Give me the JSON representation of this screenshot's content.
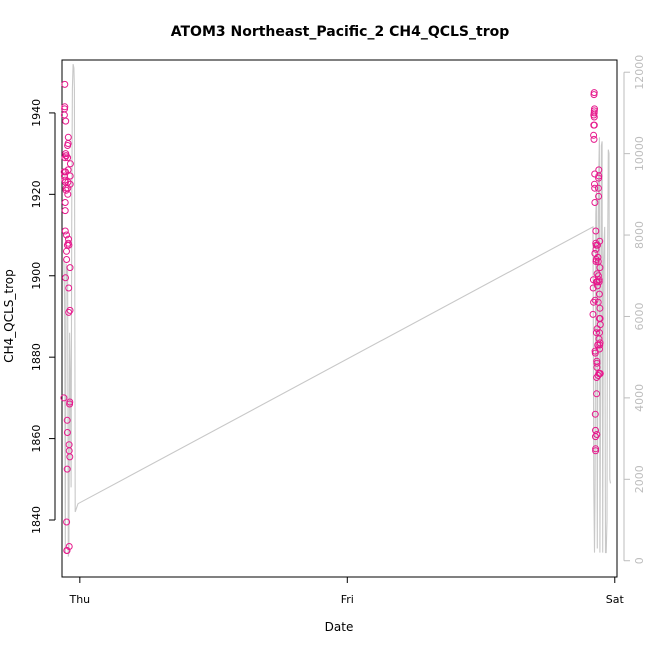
{
  "chart_data": {
    "type": "scatter",
    "title": "ATOM3 Northeast_Pacific_2 CH4_QCLS_trop",
    "xlabel": "Date",
    "ylabel": "CH4_QCLS_trop",
    "x_axis": {
      "type": "date",
      "range": [
        "2017-10-04T22:24",
        "2017-10-07T00:12"
      ],
      "ticks": [
        {
          "label": "Thu",
          "value": "2017-10-05T00:00"
        },
        {
          "label": "Fri",
          "value": "2017-10-06T00:00"
        },
        {
          "label": "Sat",
          "value": "2017-10-07T00:00"
        }
      ]
    },
    "y_left": {
      "range": [
        1826,
        1953
      ],
      "ticks": [
        1840,
        1860,
        1880,
        1900,
        1920,
        1940
      ],
      "color": "#000000"
    },
    "y_right": {
      "range": [
        -400,
        12300
      ],
      "ticks": [
        0,
        2000,
        4000,
        6000,
        8000,
        10000,
        12000
      ],
      "color": "#bdbdbd",
      "label": ""
    },
    "series": [
      {
        "type": "line",
        "axis": "right",
        "color": "#c8c8c8",
        "points": [
          [
            "2017-10-04T22:34",
            7400
          ],
          [
            "2017-10-04T22:38",
            6400
          ],
          [
            "2017-10-04T22:42",
            200
          ],
          [
            "2017-10-04T22:46",
            7300
          ],
          [
            "2017-10-04T22:50",
            6900
          ],
          [
            "2017-10-04T22:54",
            7200
          ],
          [
            "2017-10-04T22:58",
            100
          ],
          [
            "2017-10-04T23:01",
            200
          ],
          [
            "2017-10-04T23:05",
            5600
          ],
          [
            "2017-10-04T23:09",
            4500
          ],
          [
            "2017-10-04T23:13",
            1800
          ],
          [
            "2017-10-04T23:17",
            9000
          ],
          [
            "2017-10-04T23:20",
            11600
          ],
          [
            "2017-10-04T23:24",
            12200
          ],
          [
            "2017-10-04T23:28",
            12100
          ],
          [
            "2017-10-04T23:31",
            11600
          ],
          [
            "2017-10-04T23:35",
            1200
          ],
          [
            "2017-10-04T23:50",
            1400
          ],
          [
            "2017-10-06T22:03",
            8200
          ],
          [
            "2017-10-06T22:07",
            1800
          ],
          [
            "2017-10-06T22:11",
            200
          ],
          [
            "2017-10-06T22:14",
            1900
          ],
          [
            "2017-10-06T22:18",
            8500
          ],
          [
            "2017-10-06T22:22",
            9200
          ],
          [
            "2017-10-06T22:26",
            300
          ],
          [
            "2017-10-06T22:29",
            6000
          ],
          [
            "2017-10-06T22:33",
            9300
          ],
          [
            "2017-10-06T22:37",
            10400
          ],
          [
            "2017-10-06T22:40",
            200
          ],
          [
            "2017-10-06T22:44",
            4300
          ],
          [
            "2017-10-06T22:48",
            10200
          ],
          [
            "2017-10-06T22:52",
            10300
          ],
          [
            "2017-10-06T22:55",
            200
          ],
          [
            "2017-10-06T22:59",
            7200
          ],
          [
            "2017-10-06T23:03",
            7900
          ],
          [
            "2017-10-06T23:06",
            8200
          ],
          [
            "2017-10-06T23:10",
            200
          ],
          [
            "2017-10-06T23:14",
            200
          ],
          [
            "2017-10-06T23:18",
            1000
          ],
          [
            "2017-10-06T23:21",
            7000
          ],
          [
            "2017-10-06T23:25",
            10100
          ],
          [
            "2017-10-06T23:29",
            10000
          ],
          [
            "2017-10-06T23:33",
            2000
          ],
          [
            "2017-10-06T23:37",
            1900
          ]
        ]
      },
      {
        "type": "scatter",
        "axis": "left",
        "color": "#e6198c",
        "marker": "open-circle",
        "points": [
          [
            "2017-10-04T22:34",
            1870
          ],
          [
            "2017-10-04T22:36",
            1925.5
          ],
          [
            "2017-10-04T22:37",
            1924.5
          ],
          [
            "2017-10-04T22:37",
            1939.5
          ],
          [
            "2017-10-04T22:38",
            1941
          ],
          [
            "2017-10-04T22:39",
            1941.5
          ],
          [
            "2017-10-04T22:39",
            1947
          ],
          [
            "2017-10-04T22:40",
            1929
          ],
          [
            "2017-10-04T22:40",
            1923.5
          ],
          [
            "2017-10-04T22:41",
            1918
          ],
          [
            "2017-10-04T22:41",
            1916
          ],
          [
            "2017-10-04T22:42",
            1911
          ],
          [
            "2017-10-04T22:43",
            1899.5
          ],
          [
            "2017-10-04T22:43",
            1923
          ],
          [
            "2017-10-04T22:43",
            1925.5
          ],
          [
            "2017-10-04T22:44",
            1930
          ],
          [
            "2017-10-04T22:44",
            1938
          ],
          [
            "2017-10-04T22:45",
            1929.5
          ],
          [
            "2017-10-04T22:46",
            1921.5
          ],
          [
            "2017-10-04T22:46",
            1921
          ],
          [
            "2017-10-04T22:47",
            1929.5
          ],
          [
            "2017-10-04T22:48",
            1910
          ],
          [
            "2017-10-04T22:48",
            1906
          ],
          [
            "2017-10-04T22:49",
            1904
          ],
          [
            "2017-10-04T22:49",
            1839.5
          ],
          [
            "2017-10-04T22:50",
            1832.5
          ],
          [
            "2017-10-04T22:51",
            1832.5
          ],
          [
            "2017-10-04T22:52",
            1852.5
          ],
          [
            "2017-10-04T22:52",
            1864.5
          ],
          [
            "2017-10-04T22:53",
            1861.5
          ],
          [
            "2017-10-04T22:53",
            1907.5
          ],
          [
            "2017-10-04T22:54",
            1929
          ],
          [
            "2017-10-04T22:54",
            1932
          ],
          [
            "2017-10-04T22:55",
            1920
          ],
          [
            "2017-10-04T22:55",
            1921.5
          ],
          [
            "2017-10-04T22:56",
            1923
          ],
          [
            "2017-10-04T22:57",
            1926
          ],
          [
            "2017-10-04T22:57",
            1932.5
          ],
          [
            "2017-10-04T22:58",
            1934
          ],
          [
            "2017-10-04T22:58",
            1908
          ],
          [
            "2017-10-04T22:59",
            1909
          ],
          [
            "2017-10-04T23:00",
            1897
          ],
          [
            "2017-10-04T23:00",
            1891
          ],
          [
            "2017-10-04T23:01",
            1907.5
          ],
          [
            "2017-10-04T23:02",
            1858.5
          ],
          [
            "2017-10-04T23:03",
            1857
          ],
          [
            "2017-10-04T23:03",
            1833.5
          ],
          [
            "2017-10-04T23:05",
            1868.5
          ],
          [
            "2017-10-04T23:06",
            1869
          ],
          [
            "2017-10-04T23:06",
            1855.5
          ],
          [
            "2017-10-04T23:07",
            1891.5
          ],
          [
            "2017-10-04T23:07",
            1902
          ],
          [
            "2017-10-04T23:08",
            1924.5
          ],
          [
            "2017-10-04T23:08",
            1922.5
          ],
          [
            "2017-10-04T23:09",
            1927.5
          ],
          [
            "2017-10-06T22:03",
            1890.5
          ],
          [
            "2017-10-06T22:04",
            1897
          ],
          [
            "2017-10-06T22:05",
            1899
          ],
          [
            "2017-10-06T22:06",
            1893.5
          ],
          [
            "2017-10-06T22:06",
            1934.5
          ],
          [
            "2017-10-06T22:07",
            1939.5
          ],
          [
            "2017-10-06T22:07",
            1937
          ],
          [
            "2017-10-06T22:08",
            1933.5
          ],
          [
            "2017-10-06T22:08",
            1944.5
          ],
          [
            "2017-10-06T22:09",
            1945
          ],
          [
            "2017-10-06T22:09",
            1940
          ],
          [
            "2017-10-06T22:10",
            1940.5
          ],
          [
            "2017-10-06T22:10",
            1939
          ],
          [
            "2017-10-06T22:10",
            1937
          ],
          [
            "2017-10-06T22:11",
            1941
          ],
          [
            "2017-10-06T22:11",
            1922.5
          ],
          [
            "2017-10-06T22:12",
            1925
          ],
          [
            "2017-10-06T22:12",
            1921.5
          ],
          [
            "2017-10-06T22:13",
            1918
          ],
          [
            "2017-10-06T22:13",
            1905.5
          ],
          [
            "2017-10-06T22:14",
            1894
          ],
          [
            "2017-10-06T22:14",
            1881.5
          ],
          [
            "2017-10-06T22:15",
            1881
          ],
          [
            "2017-10-06T22:15",
            1866
          ],
          [
            "2017-10-06T22:16",
            1862
          ],
          [
            "2017-10-06T22:16",
            1860.5
          ],
          [
            "2017-10-06T22:17",
            1857
          ],
          [
            "2017-10-06T22:17",
            1857.5
          ],
          [
            "2017-10-06T22:18",
            1911
          ],
          [
            "2017-10-06T22:18",
            1908
          ],
          [
            "2017-10-06T22:19",
            1903.5
          ],
          [
            "2017-10-06T22:19",
            1906.5
          ],
          [
            "2017-10-06T22:20",
            1907.5
          ],
          [
            "2017-10-06T22:20",
            1904
          ],
          [
            "2017-10-06T22:21",
            1898.5
          ],
          [
            "2017-10-06T22:21",
            1886
          ],
          [
            "2017-10-06T22:22",
            1875
          ],
          [
            "2017-10-06T22:22",
            1871
          ],
          [
            "2017-10-06T22:23",
            1861
          ],
          [
            "2017-10-06T22:23",
            1879
          ],
          [
            "2017-10-06T22:24",
            1877.5
          ],
          [
            "2017-10-06T22:24",
            1878.5
          ],
          [
            "2017-10-06T22:25",
            1887
          ],
          [
            "2017-10-06T22:25",
            1900.5
          ],
          [
            "2017-10-06T22:26",
            1898.5
          ],
          [
            "2017-10-06T22:27",
            1897.5
          ],
          [
            "2017-10-06T22:27",
            1907.5
          ],
          [
            "2017-10-06T22:28",
            1883
          ],
          [
            "2017-10-06T22:29",
            1883
          ],
          [
            "2017-10-06T22:29",
            1904.5
          ],
          [
            "2017-10-06T22:30",
            1875.5
          ],
          [
            "2017-10-06T22:31",
            1893.5
          ],
          [
            "2017-10-06T22:31",
            1903.5
          ],
          [
            "2017-10-06T22:32",
            1900
          ],
          [
            "2017-10-06T22:32",
            1921.5
          ],
          [
            "2017-10-06T22:33",
            1919.5
          ],
          [
            "2017-10-06T22:33",
            1924
          ],
          [
            "2017-10-06T22:34",
            1924.5
          ],
          [
            "2017-10-06T22:34",
            1926
          ],
          [
            "2017-10-06T22:35",
            1876
          ],
          [
            "2017-10-06T22:35",
            1884.5
          ],
          [
            "2017-10-06T22:36",
            1899
          ],
          [
            "2017-10-06T22:36",
            1898.5
          ],
          [
            "2017-10-06T22:37",
            1895.5
          ],
          [
            "2017-10-06T22:37",
            1889.5
          ],
          [
            "2017-10-06T22:38",
            1886
          ],
          [
            "2017-10-06T22:38",
            1876
          ],
          [
            "2017-10-06T22:38",
            1882
          ],
          [
            "2017-10-06T22:39",
            1883
          ],
          [
            "2017-10-06T22:39",
            1908.5
          ],
          [
            "2017-10-06T22:40",
            1902
          ],
          [
            "2017-10-06T22:40",
            1892
          ],
          [
            "2017-10-06T22:41",
            1889.5
          ],
          [
            "2017-10-06T22:41",
            1883.5
          ],
          [
            "2017-10-06T22:42",
            1876
          ],
          [
            "2017-10-06T22:42",
            1888
          ]
        ]
      }
    ],
    "grid": false
  }
}
